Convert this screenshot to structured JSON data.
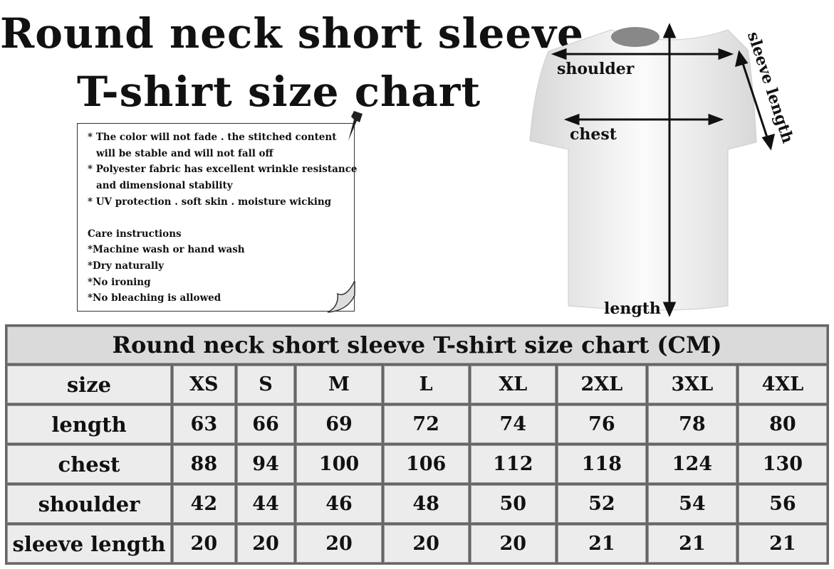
{
  "title_line1": "Round neck short sleeve",
  "title_line2": "T-shirt size chart",
  "notes": {
    "features": [
      "* The color will not fade . the stitched content",
      "will be stable and will not fall off",
      "* Polyester fabric has excellent wrinkle resistance",
      "and dimensional stability",
      "* UV protection . soft skin . moisture wicking"
    ],
    "care_title": "Care instructions",
    "care": [
      "*Machine wash or hand wash",
      "*Dry naturally",
      "*No ironing",
      "*No bleaching is allowed"
    ]
  },
  "diagram_labels": {
    "shoulder": "shoulder",
    "chest": "chest",
    "sleeve_length": "sleeve length",
    "length": "length"
  },
  "table": {
    "title": "Round neck short sleeve T-shirt size chart (CM)",
    "rows": [
      {
        "label": "size",
        "values": [
          "XS",
          "S",
          "M",
          "L",
          "XL",
          "2XL",
          "3XL",
          "4XL"
        ]
      },
      {
        "label": "length",
        "values": [
          "63",
          "66",
          "69",
          "72",
          "74",
          "76",
          "78",
          "80"
        ]
      },
      {
        "label": "chest",
        "values": [
          "88",
          "94",
          "100",
          "106",
          "112",
          "118",
          "124",
          "130"
        ]
      },
      {
        "label": "shoulder",
        "values": [
          "42",
          "44",
          "46",
          "48",
          "50",
          "52",
          "54",
          "56"
        ]
      },
      {
        "label": "sleeve length",
        "values": [
          "20",
          "20",
          "20",
          "20",
          "20",
          "21",
          "21",
          "21"
        ]
      }
    ]
  }
}
